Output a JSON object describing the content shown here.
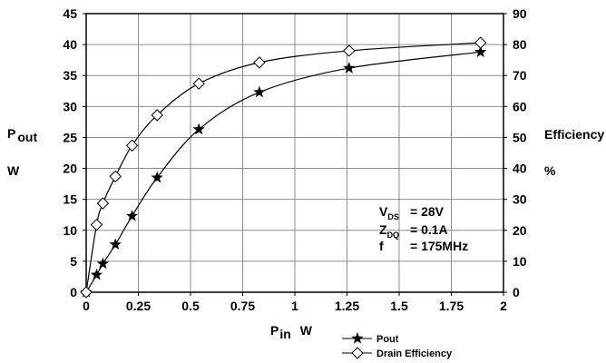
{
  "chart_data": {
    "type": "line",
    "x": [
      0,
      0.05,
      0.08,
      0.14,
      0.22,
      0.34,
      0.54,
      0.83,
      1.26,
      1.89
    ],
    "xlim": [
      0,
      2
    ],
    "xticks": [
      "0",
      "0.25",
      "0.5",
      "0.75",
      "1",
      "1.25",
      "1.5",
      "1.75",
      "2"
    ],
    "xlabel": {
      "main": "P",
      "sub": "in",
      "unit": "W"
    },
    "ylim_left": [
      0,
      45
    ],
    "yticks_left": [
      "0",
      "5",
      "10",
      "15",
      "20",
      "25",
      "30",
      "35",
      "40",
      "45"
    ],
    "ylabel_left": {
      "main": "P",
      "sub": "out",
      "unit": "W"
    },
    "ylim_right": [
      0,
      90
    ],
    "yticks_right": [
      "0",
      "10",
      "20",
      "30",
      "40",
      "50",
      "60",
      "70",
      "80",
      "90"
    ],
    "ylabel_right": {
      "main": "Efficiency",
      "unit": "%"
    },
    "grid": true,
    "legend_position": "bottom-center",
    "series": [
      {
        "name": "Pout",
        "axis": "left",
        "marker": "star",
        "values": [
          0,
          2.8,
          4.6,
          7.7,
          12.3,
          18.5,
          26.3,
          32.3,
          36.2,
          38.8
        ]
      },
      {
        "name": "Drain Efficiency",
        "axis": "right",
        "marker": "diamond",
        "values": [
          0,
          21.8,
          28.7,
          37.4,
          47.4,
          57.2,
          67.4,
          74.2,
          78.0,
          80.6
        ]
      }
    ],
    "annotations": [
      {
        "main": "V",
        "sub": "DS",
        "value": "= 28V"
      },
      {
        "main": "Z",
        "sub": "DQ",
        "value": "= 0.1A"
      },
      {
        "main": "f",
        "sub": "",
        "value": "= 175MHz"
      }
    ]
  }
}
